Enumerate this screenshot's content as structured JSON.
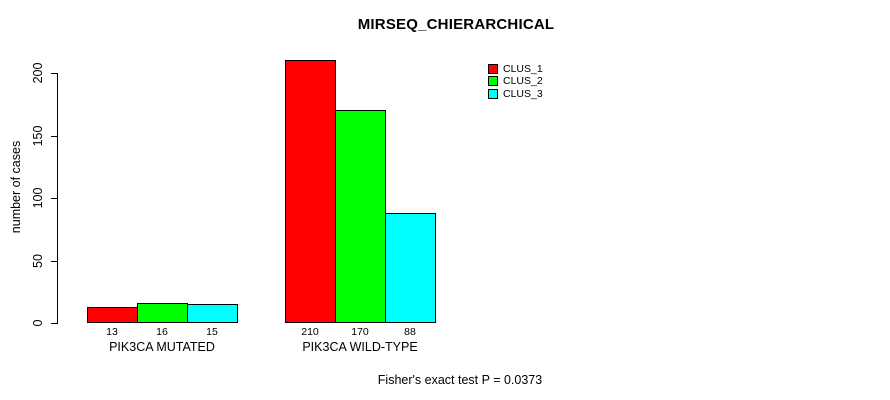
{
  "chart_data": {
    "type": "bar",
    "title": "MIRSEQ_CHIERARCHICAL",
    "xlabel": "",
    "ylabel": "number of cases",
    "categories": [
      "PIK3CA MUTATED",
      "PIK3CA WILD-TYPE"
    ],
    "series": [
      {
        "name": "CLUS_1",
        "color": "#ff0000",
        "values": [
          13,
          210
        ]
      },
      {
        "name": "CLUS_2",
        "color": "#00ff00",
        "values": [
          16,
          170
        ]
      },
      {
        "name": "CLUS_3",
        "color": "#00ffff",
        "values": [
          15,
          88
        ]
      }
    ],
    "bar_value_labels": [
      [
        "13",
        "16",
        "15"
      ],
      [
        "210",
        "170",
        "88"
      ]
    ],
    "ylim": [
      0,
      200
    ],
    "yticks": [
      0,
      50,
      100,
      150,
      200
    ],
    "grid": false,
    "bar_border_color": "#000000",
    "legend_position": "top-right",
    "legend_entries": [
      "CLUS_1",
      "CLUS_2",
      "CLUS_3"
    ],
    "annotation": "Fisher's exact test P = 0.0373"
  }
}
